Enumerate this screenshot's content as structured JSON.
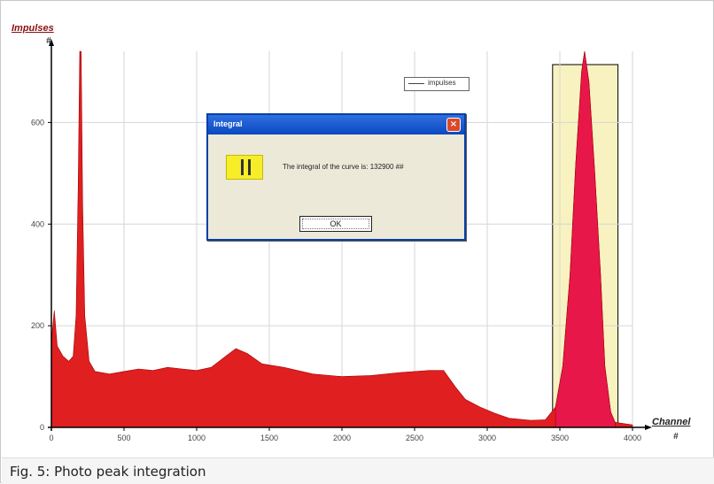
{
  "chart_data": {
    "type": "area",
    "ylabel": "Impulses",
    "yunit": "#",
    "xlabel": "Channel",
    "xunit": "#",
    "xlim": [
      0,
      4000
    ],
    "ylim": [
      0,
      740
    ],
    "x_ticks": [
      0,
      500,
      1000,
      1500,
      2000,
      2500,
      3000,
      3500,
      4000
    ],
    "y_ticks": [
      0,
      200,
      400,
      600
    ],
    "grid": true,
    "legend": "top-right",
    "series": [
      {
        "name": "Impulses",
        "color": "#e01f20",
        "points": [
          [
            0,
            170
          ],
          [
            20,
            230
          ],
          [
            40,
            160
          ],
          [
            80,
            140
          ],
          [
            120,
            130
          ],
          [
            150,
            140
          ],
          [
            170,
            220
          ],
          [
            185,
            480
          ],
          [
            195,
            740
          ],
          [
            205,
            740
          ],
          [
            215,
            440
          ],
          [
            230,
            220
          ],
          [
            260,
            130
          ],
          [
            300,
            110
          ],
          [
            400,
            105
          ],
          [
            500,
            110
          ],
          [
            600,
            115
          ],
          [
            700,
            112
          ],
          [
            800,
            118
          ],
          [
            900,
            115
          ],
          [
            1000,
            112
          ],
          [
            1100,
            118
          ],
          [
            1200,
            140
          ],
          [
            1270,
            155
          ],
          [
            1350,
            145
          ],
          [
            1450,
            125
          ],
          [
            1600,
            118
          ],
          [
            1800,
            105
          ],
          [
            2000,
            100
          ],
          [
            2200,
            102
          ],
          [
            2400,
            108
          ],
          [
            2600,
            112
          ],
          [
            2700,
            112
          ],
          [
            2780,
            80
          ],
          [
            2850,
            55
          ],
          [
            2950,
            40
          ],
          [
            3050,
            28
          ],
          [
            3150,
            18
          ],
          [
            3300,
            14
          ],
          [
            3400,
            15
          ],
          [
            3470,
            40
          ],
          [
            3520,
            120
          ],
          [
            3570,
            300
          ],
          [
            3610,
            520
          ],
          [
            3650,
            700
          ],
          [
            3670,
            740
          ],
          [
            3700,
            680
          ],
          [
            3740,
            500
          ],
          [
            3780,
            300
          ],
          [
            3810,
            120
          ],
          [
            3850,
            30
          ],
          [
            3880,
            10
          ],
          [
            4000,
            5
          ]
        ]
      }
    ],
    "highlight_region": {
      "x": [
        3450,
        3900
      ],
      "color": "#f8f2c0"
    },
    "peak_fill_color": "#e8174a"
  },
  "legend": {
    "label": "impulses"
  },
  "dialog": {
    "title": "Integral",
    "message": "The integral of the curve is: 132900 ##",
    "ok_label": "OK"
  },
  "caption": "Fig. 5: Photo peak integration",
  "colors": {
    "axis": "#000000",
    "grid": "#d6d6d6",
    "dialog_title": "#0b48c0"
  }
}
